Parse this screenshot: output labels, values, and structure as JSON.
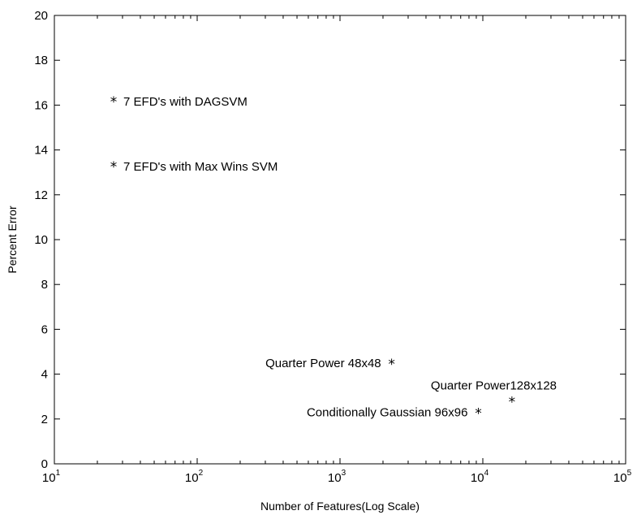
{
  "chart_data": {
    "type": "scatter",
    "xlabel": "Number of Features(Log Scale)",
    "ylabel": "Percent Error",
    "xscale": "log",
    "xlim": [
      10,
      100000
    ],
    "ylim": [
      0,
      20
    ],
    "y_ticks": [
      "0",
      "2",
      "4",
      "6",
      "8",
      "10",
      "12",
      "14",
      "16",
      "18",
      "20"
    ],
    "x_ticks": [
      {
        "base": "10",
        "exp": "1"
      },
      {
        "base": "10",
        "exp": "2"
      },
      {
        "base": "10",
        "exp": "3"
      },
      {
        "base": "10",
        "exp": "4"
      },
      {
        "base": "10",
        "exp": "5"
      }
    ],
    "marker": "*",
    "grid": false,
    "points": [
      {
        "x": 26,
        "y": 16.2,
        "label": "7 EFD's with DAGSVM",
        "label_side": "right"
      },
      {
        "x": 26,
        "y": 13.3,
        "label": "7 EFD's with Max Wins SVM",
        "label_side": "right"
      },
      {
        "x": 2300,
        "y": 4.5,
        "label": "Quarter Power 48x48",
        "label_side": "left"
      },
      {
        "x": 16000,
        "y": 2.8,
        "label": "Quarter Power128x128",
        "label_side": "above"
      },
      {
        "x": 9300,
        "y": 2.3,
        "label": "Conditionally Gaussian 96x96",
        "label_side": "left"
      }
    ]
  }
}
